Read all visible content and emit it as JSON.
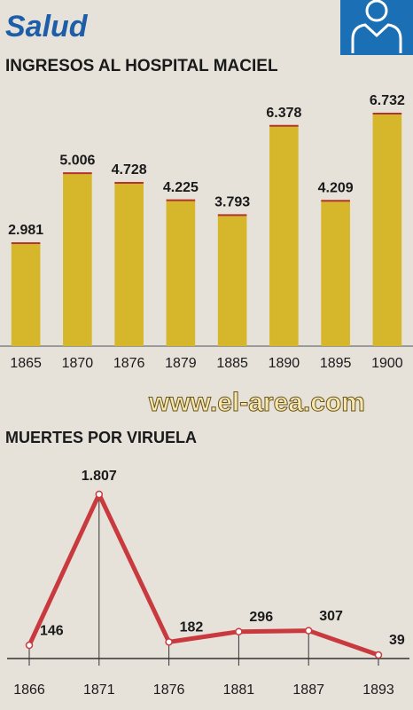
{
  "header": {
    "title": "Salud"
  },
  "watermark": "www.el-area.com",
  "chart_data": [
    {
      "type": "bar",
      "title": "INGRESOS AL HOSPITAL MACIEL",
      "categories": [
        "1865",
        "1870",
        "1876",
        "1879",
        "1885",
        "1890",
        "1895",
        "1900"
      ],
      "values": [
        2981,
        5006,
        4728,
        4225,
        3793,
        6378,
        4209,
        6732
      ],
      "value_labels": [
        "2.981",
        "5.006",
        "4.728",
        "4.225",
        "3.793",
        "6.378",
        "4.209",
        "6.732"
      ],
      "color": "#d6b62a"
    },
    {
      "type": "line",
      "title": "MUERTES POR VIRUELA",
      "categories": [
        "1866",
        "1871",
        "1876",
        "1881",
        "1887",
        "1893"
      ],
      "values": [
        146,
        1807,
        182,
        296,
        307,
        39
      ],
      "value_labels": [
        "146",
        "1.807",
        "182",
        "296",
        "307",
        "39"
      ],
      "color": "#c93a3f"
    }
  ]
}
